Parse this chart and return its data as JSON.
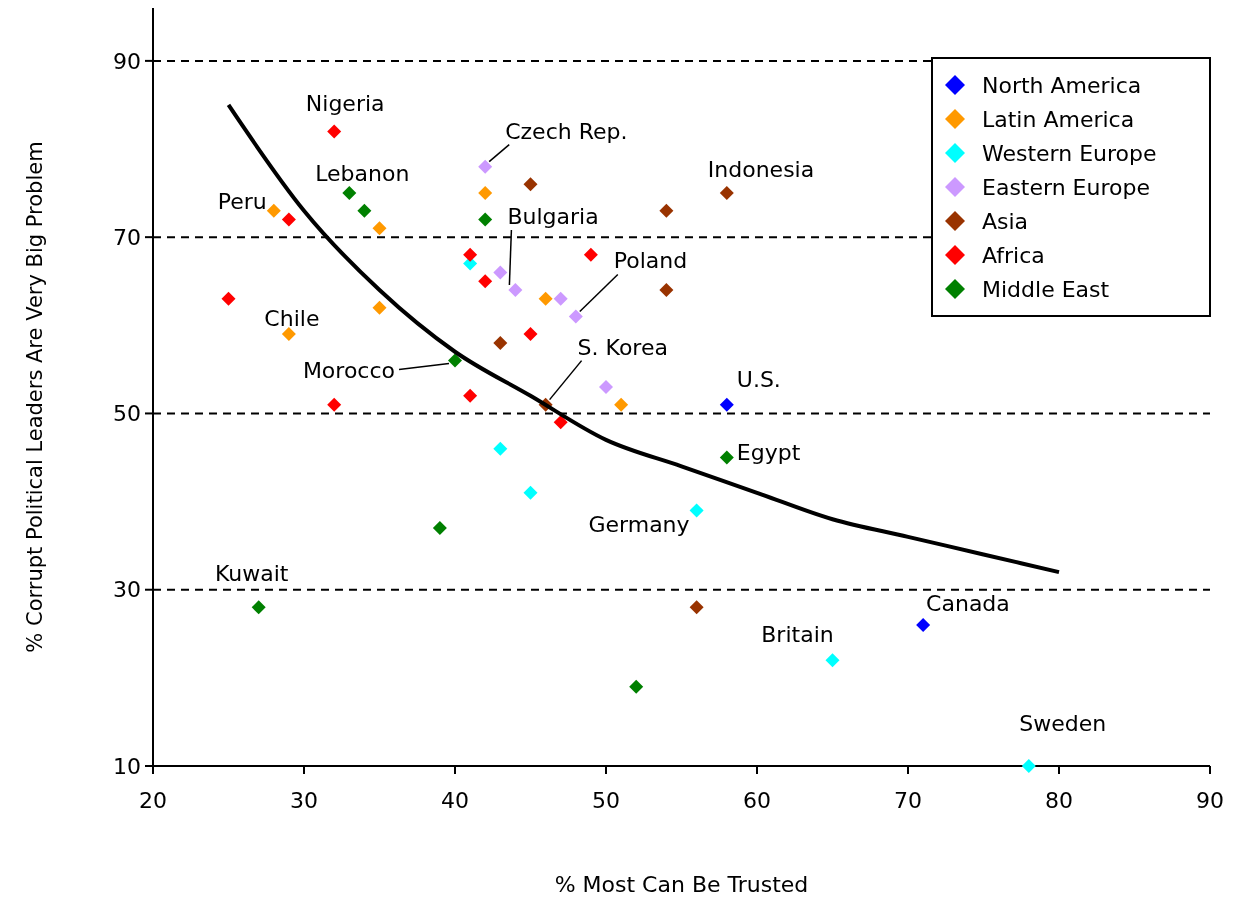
{
  "chart_data": {
    "type": "scatter",
    "xlabel": "% Most Can Be Trusted",
    "ylabel": "% Corrupt Political Leaders Are Very Big Problem",
    "xlim": [
      20,
      90
    ],
    "ylim": [
      10,
      96
    ],
    "xticks": [
      20,
      30,
      40,
      50,
      60,
      70,
      80,
      90
    ],
    "yticks": [
      10,
      30,
      50,
      70,
      90
    ],
    "grid": "y",
    "legend": "top right",
    "marker": "diamond",
    "series": [
      {
        "name": "North America",
        "color": "#0000ff",
        "x": [
          58,
          71
        ],
        "values": [
          51,
          26
        ]
      },
      {
        "name": "Latin America",
        "color": "#ff9900",
        "x": [
          28,
          35,
          29,
          35,
          42,
          46,
          51
        ],
        "values": [
          73,
          71,
          59,
          62,
          75,
          63,
          51
        ]
      },
      {
        "name": "Western Europe",
        "color": "#00ffff",
        "x": [
          41,
          43,
          45,
          56,
          65,
          78
        ],
        "values": [
          67,
          46,
          41,
          39,
          22,
          10
        ]
      },
      {
        "name": "Eastern Europe",
        "color": "#cc99ff",
        "x": [
          42,
          43,
          44,
          47,
          48,
          50
        ],
        "values": [
          78,
          66,
          64,
          63,
          61,
          53
        ]
      },
      {
        "name": "Asia",
        "color": "#993300",
        "x": [
          45,
          54,
          58,
          54,
          43,
          46,
          56
        ],
        "values": [
          76,
          73,
          75,
          64,
          58,
          51,
          28
        ]
      },
      {
        "name": "Africa",
        "color": "#ff0000",
        "x": [
          32,
          29,
          25,
          41,
          42,
          49,
          45,
          32,
          41,
          47
        ],
        "values": [
          82,
          72,
          63,
          68,
          65,
          68,
          59,
          51,
          52,
          49
        ]
      },
      {
        "name": "Middle East",
        "color": "#008000",
        "x": [
          33,
          34,
          42,
          40,
          58,
          39,
          27,
          52
        ],
        "values": [
          75,
          73,
          72,
          56,
          45,
          37,
          28,
          19
        ]
      },
      {
        "type": "line",
        "color": "#000000",
        "marker": "none",
        "x": [
          25,
          30,
          35,
          40,
          45,
          50,
          55,
          60,
          65,
          70,
          75,
          80
        ],
        "values": [
          85,
          73,
          64,
          57,
          52,
          47,
          44,
          41,
          38,
          36,
          34,
          32
        ]
      }
    ],
    "annotations": [
      {
        "text": "Nigeria",
        "x": 32,
        "y": 82
      },
      {
        "text": "Czech Rep.",
        "x": 42,
        "y": 78
      },
      {
        "text": "Indonesia",
        "x": 58,
        "y": 75
      },
      {
        "text": "Lebanon",
        "x": 33,
        "y": 75
      },
      {
        "text": "Peru",
        "x": 28,
        "y": 73
      },
      {
        "text": "Bulgaria",
        "x": 44,
        "y": 64
      },
      {
        "text": "Poland",
        "x": 48,
        "y": 61
      },
      {
        "text": "Chile",
        "x": 29,
        "y": 59
      },
      {
        "text": "Morocco",
        "x": 40,
        "y": 56
      },
      {
        "text": "S. Korea",
        "x": 46,
        "y": 51
      },
      {
        "text": "U.S.",
        "x": 58,
        "y": 51
      },
      {
        "text": "Egypt",
        "x": 58,
        "y": 45
      },
      {
        "text": "Germany",
        "x": 56,
        "y": 39
      },
      {
        "text": "Kuwait",
        "x": 27,
        "y": 28
      },
      {
        "text": "Canada",
        "x": 71,
        "y": 26
      },
      {
        "text": "Britain",
        "x": 65,
        "y": 22
      },
      {
        "text": "Sweden",
        "x": 78,
        "y": 10
      }
    ]
  }
}
